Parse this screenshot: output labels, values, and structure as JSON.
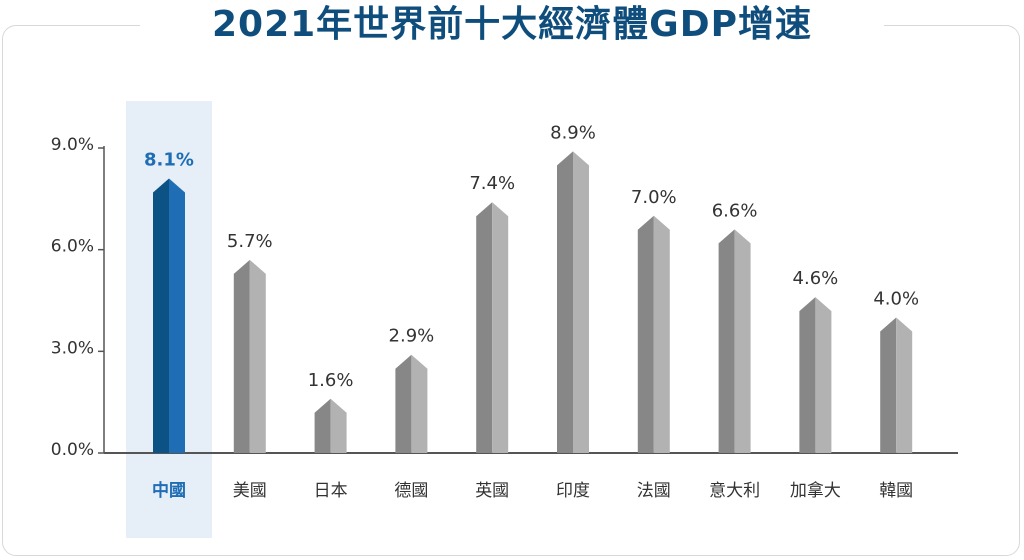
{
  "title": "2021年世界前十大經濟體GDP增速",
  "colors": {
    "title": "#0f4e7c",
    "highlight_dark": "#0d5284",
    "highlight_light": "#1f6db4",
    "highlight_text": "#1f6db4",
    "highlight_band": "#e6eef7",
    "bar_dark": "#878787",
    "bar_light": "#b2b2b2",
    "axis": "#555555"
  },
  "chart_data": {
    "type": "bar",
    "categories": [
      "中國",
      "美國",
      "日本",
      "德國",
      "英國",
      "印度",
      "法國",
      "意大利",
      "加拿大",
      "韓國"
    ],
    "values": [
      8.1,
      5.7,
      1.6,
      2.9,
      7.4,
      8.9,
      7.0,
      6.6,
      4.6,
      4.0
    ],
    "value_labels": [
      "8.1%",
      "5.7%",
      "1.6%",
      "2.9%",
      "7.4%",
      "8.9%",
      "7.0%",
      "6.6%",
      "4.6%",
      "4.0%"
    ],
    "highlight": "中國",
    "yticks": [
      {
        "value": 0,
        "label": "0.0%"
      },
      {
        "value": 3,
        "label": "3.0%"
      },
      {
        "value": 6,
        "label": "6.0%"
      },
      {
        "value": 9,
        "label": "9.0%"
      }
    ],
    "ylim": [
      0,
      9
    ],
    "grid": false,
    "legend": "none"
  }
}
